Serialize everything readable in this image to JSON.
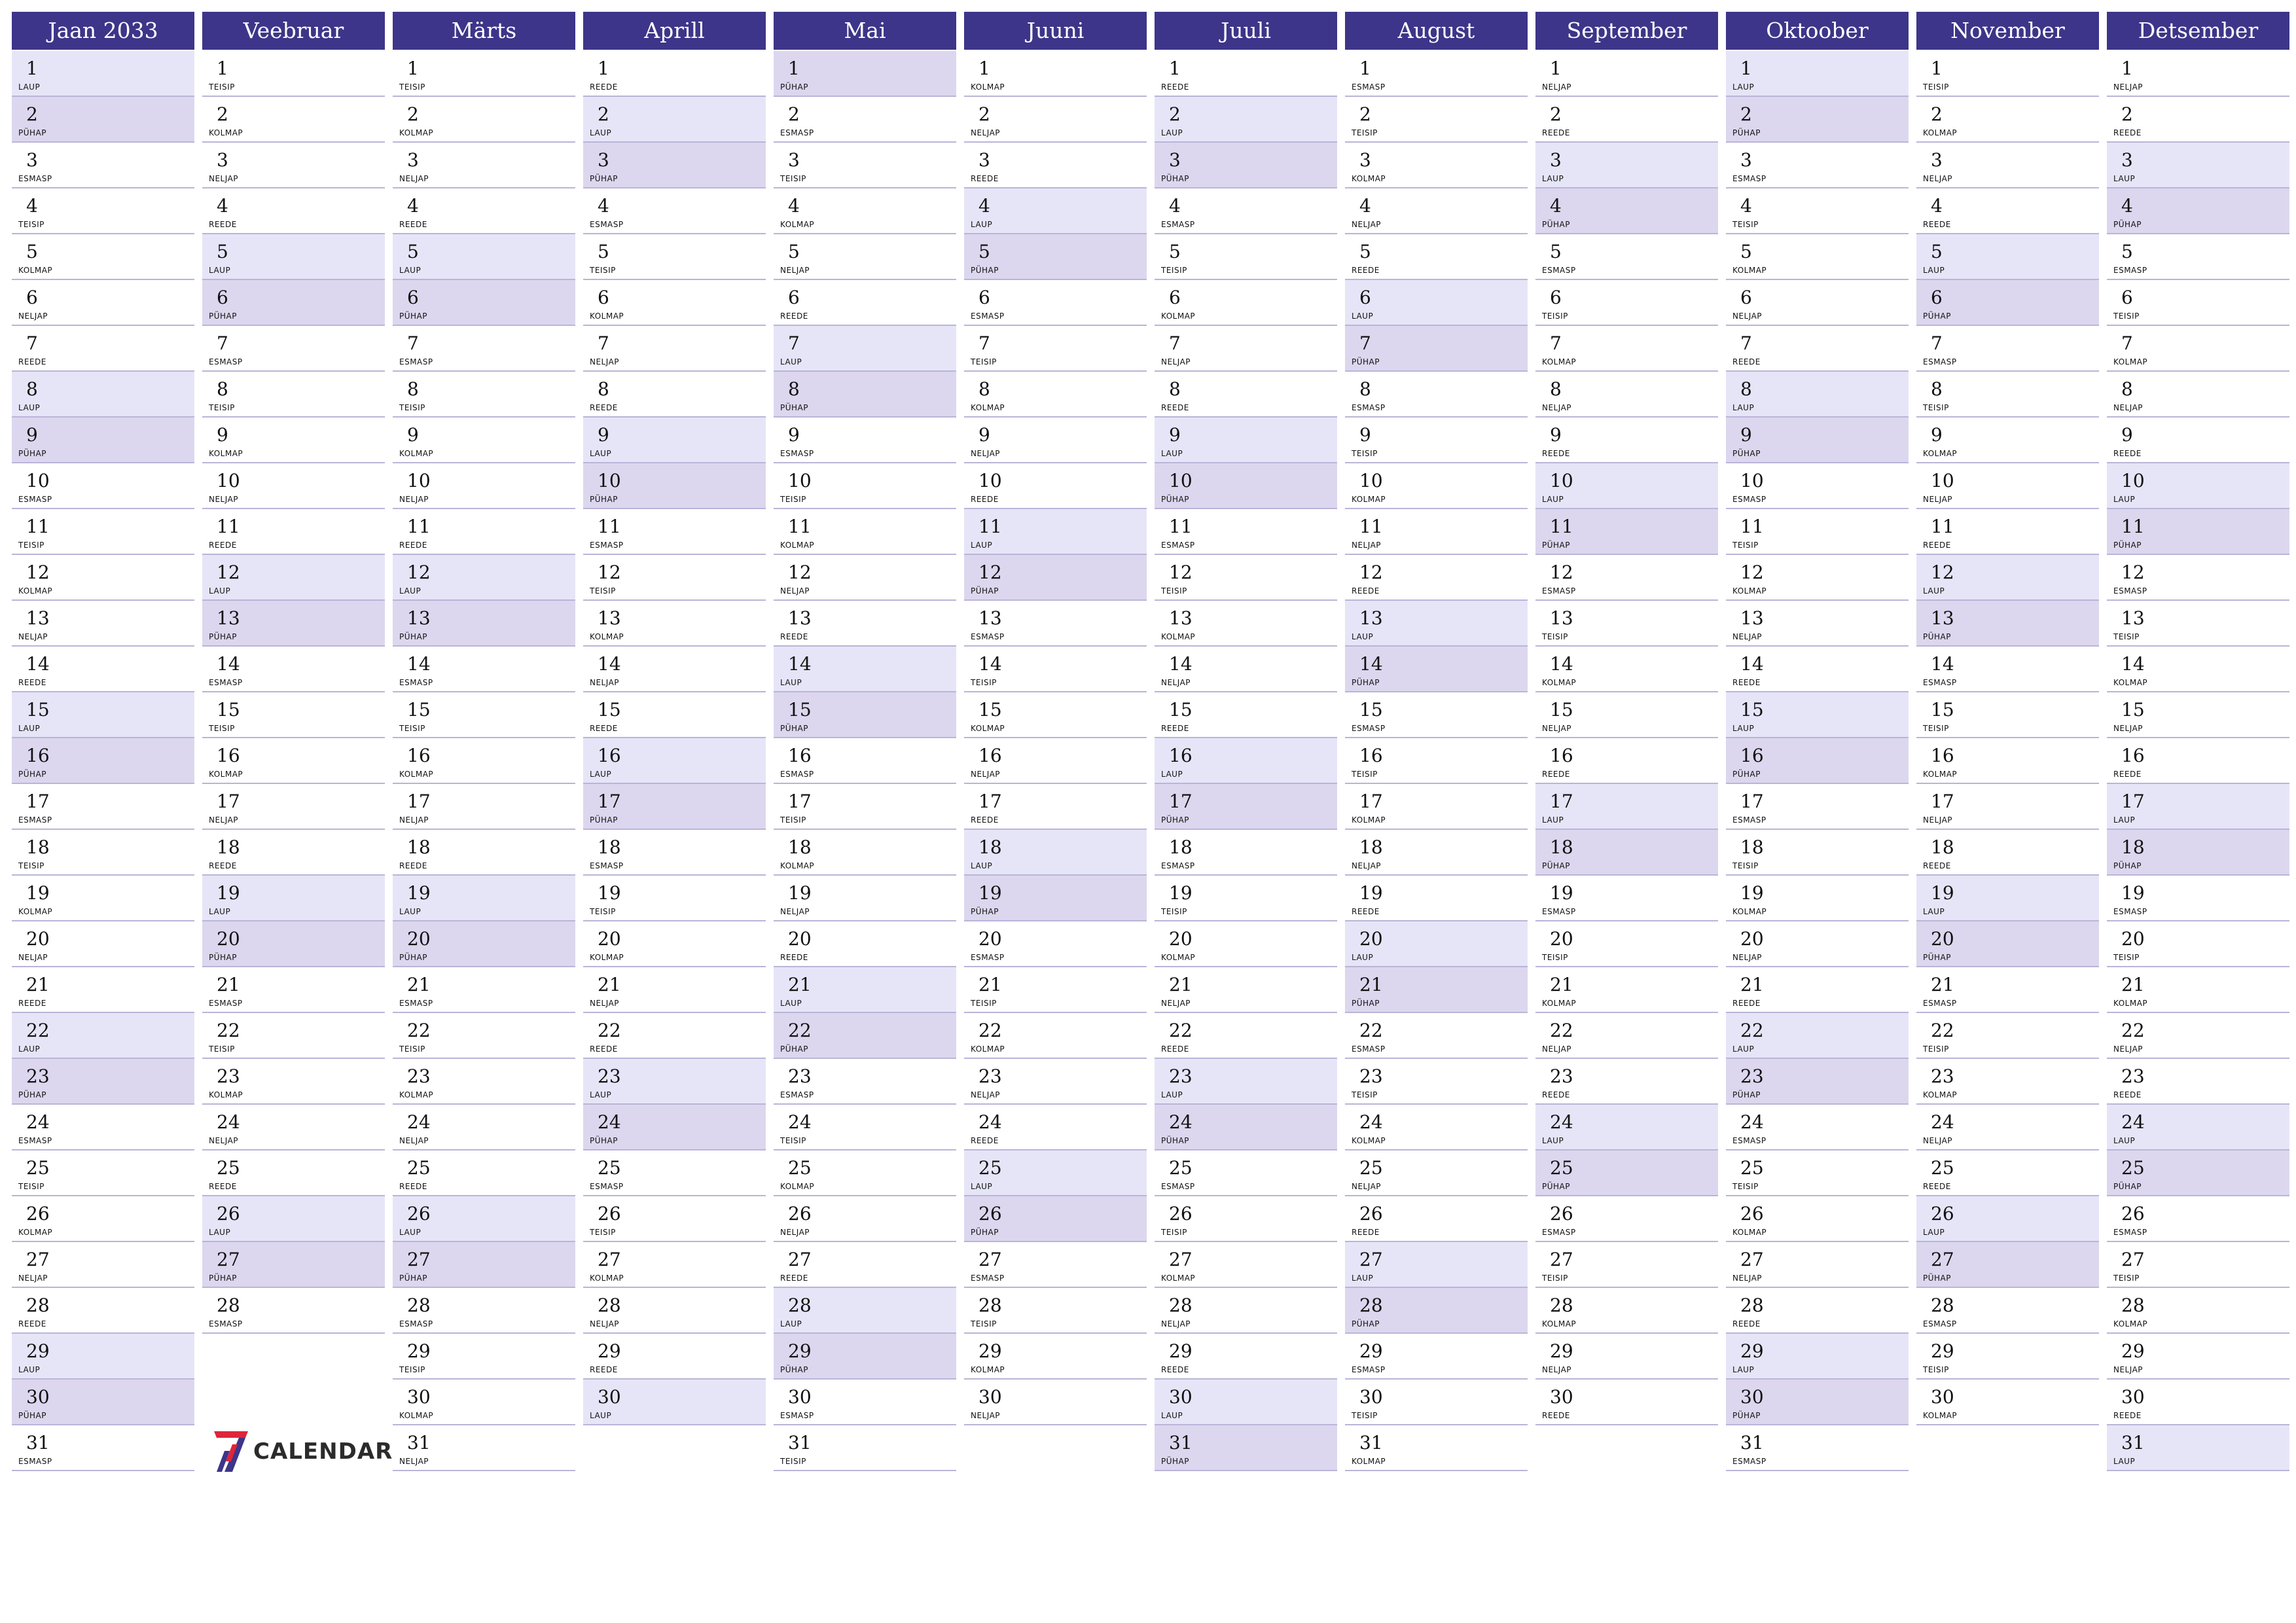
{
  "day_names": [
    "ESMASP",
    "TEISIP",
    "KOLMAP",
    "NELJAP",
    "REEDE",
    "LAUP",
    "PÜHAP"
  ],
  "months": [
    {
      "name": "Jaan 2033",
      "days": 31,
      "first_weekday": 5
    },
    {
      "name": "Veebruar",
      "days": 28,
      "first_weekday": 1
    },
    {
      "name": "Märts",
      "days": 31,
      "first_weekday": 1
    },
    {
      "name": "Aprill",
      "days": 30,
      "first_weekday": 4
    },
    {
      "name": "Mai",
      "days": 31,
      "first_weekday": 6
    },
    {
      "name": "Juuni",
      "days": 30,
      "first_weekday": 2
    },
    {
      "name": "Juuli",
      "days": 31,
      "first_weekday": 4
    },
    {
      "name": "August",
      "days": 31,
      "first_weekday": 0
    },
    {
      "name": "September",
      "days": 30,
      "first_weekday": 3
    },
    {
      "name": "Oktoober",
      "days": 31,
      "first_weekday": 5
    },
    {
      "name": "November",
      "days": 30,
      "first_weekday": 1
    },
    {
      "name": "Detsember",
      "days": 31,
      "first_weekday": 3
    }
  ],
  "colors": {
    "header": "#3d3589",
    "saturday": "#e6e5f8",
    "sunday": "#dcd7ee",
    "logo_accent": "#e0243b",
    "logo_stripe": "#3d3589"
  },
  "logo": {
    "text": "CALENDAR",
    "icon": "seven-icon"
  }
}
